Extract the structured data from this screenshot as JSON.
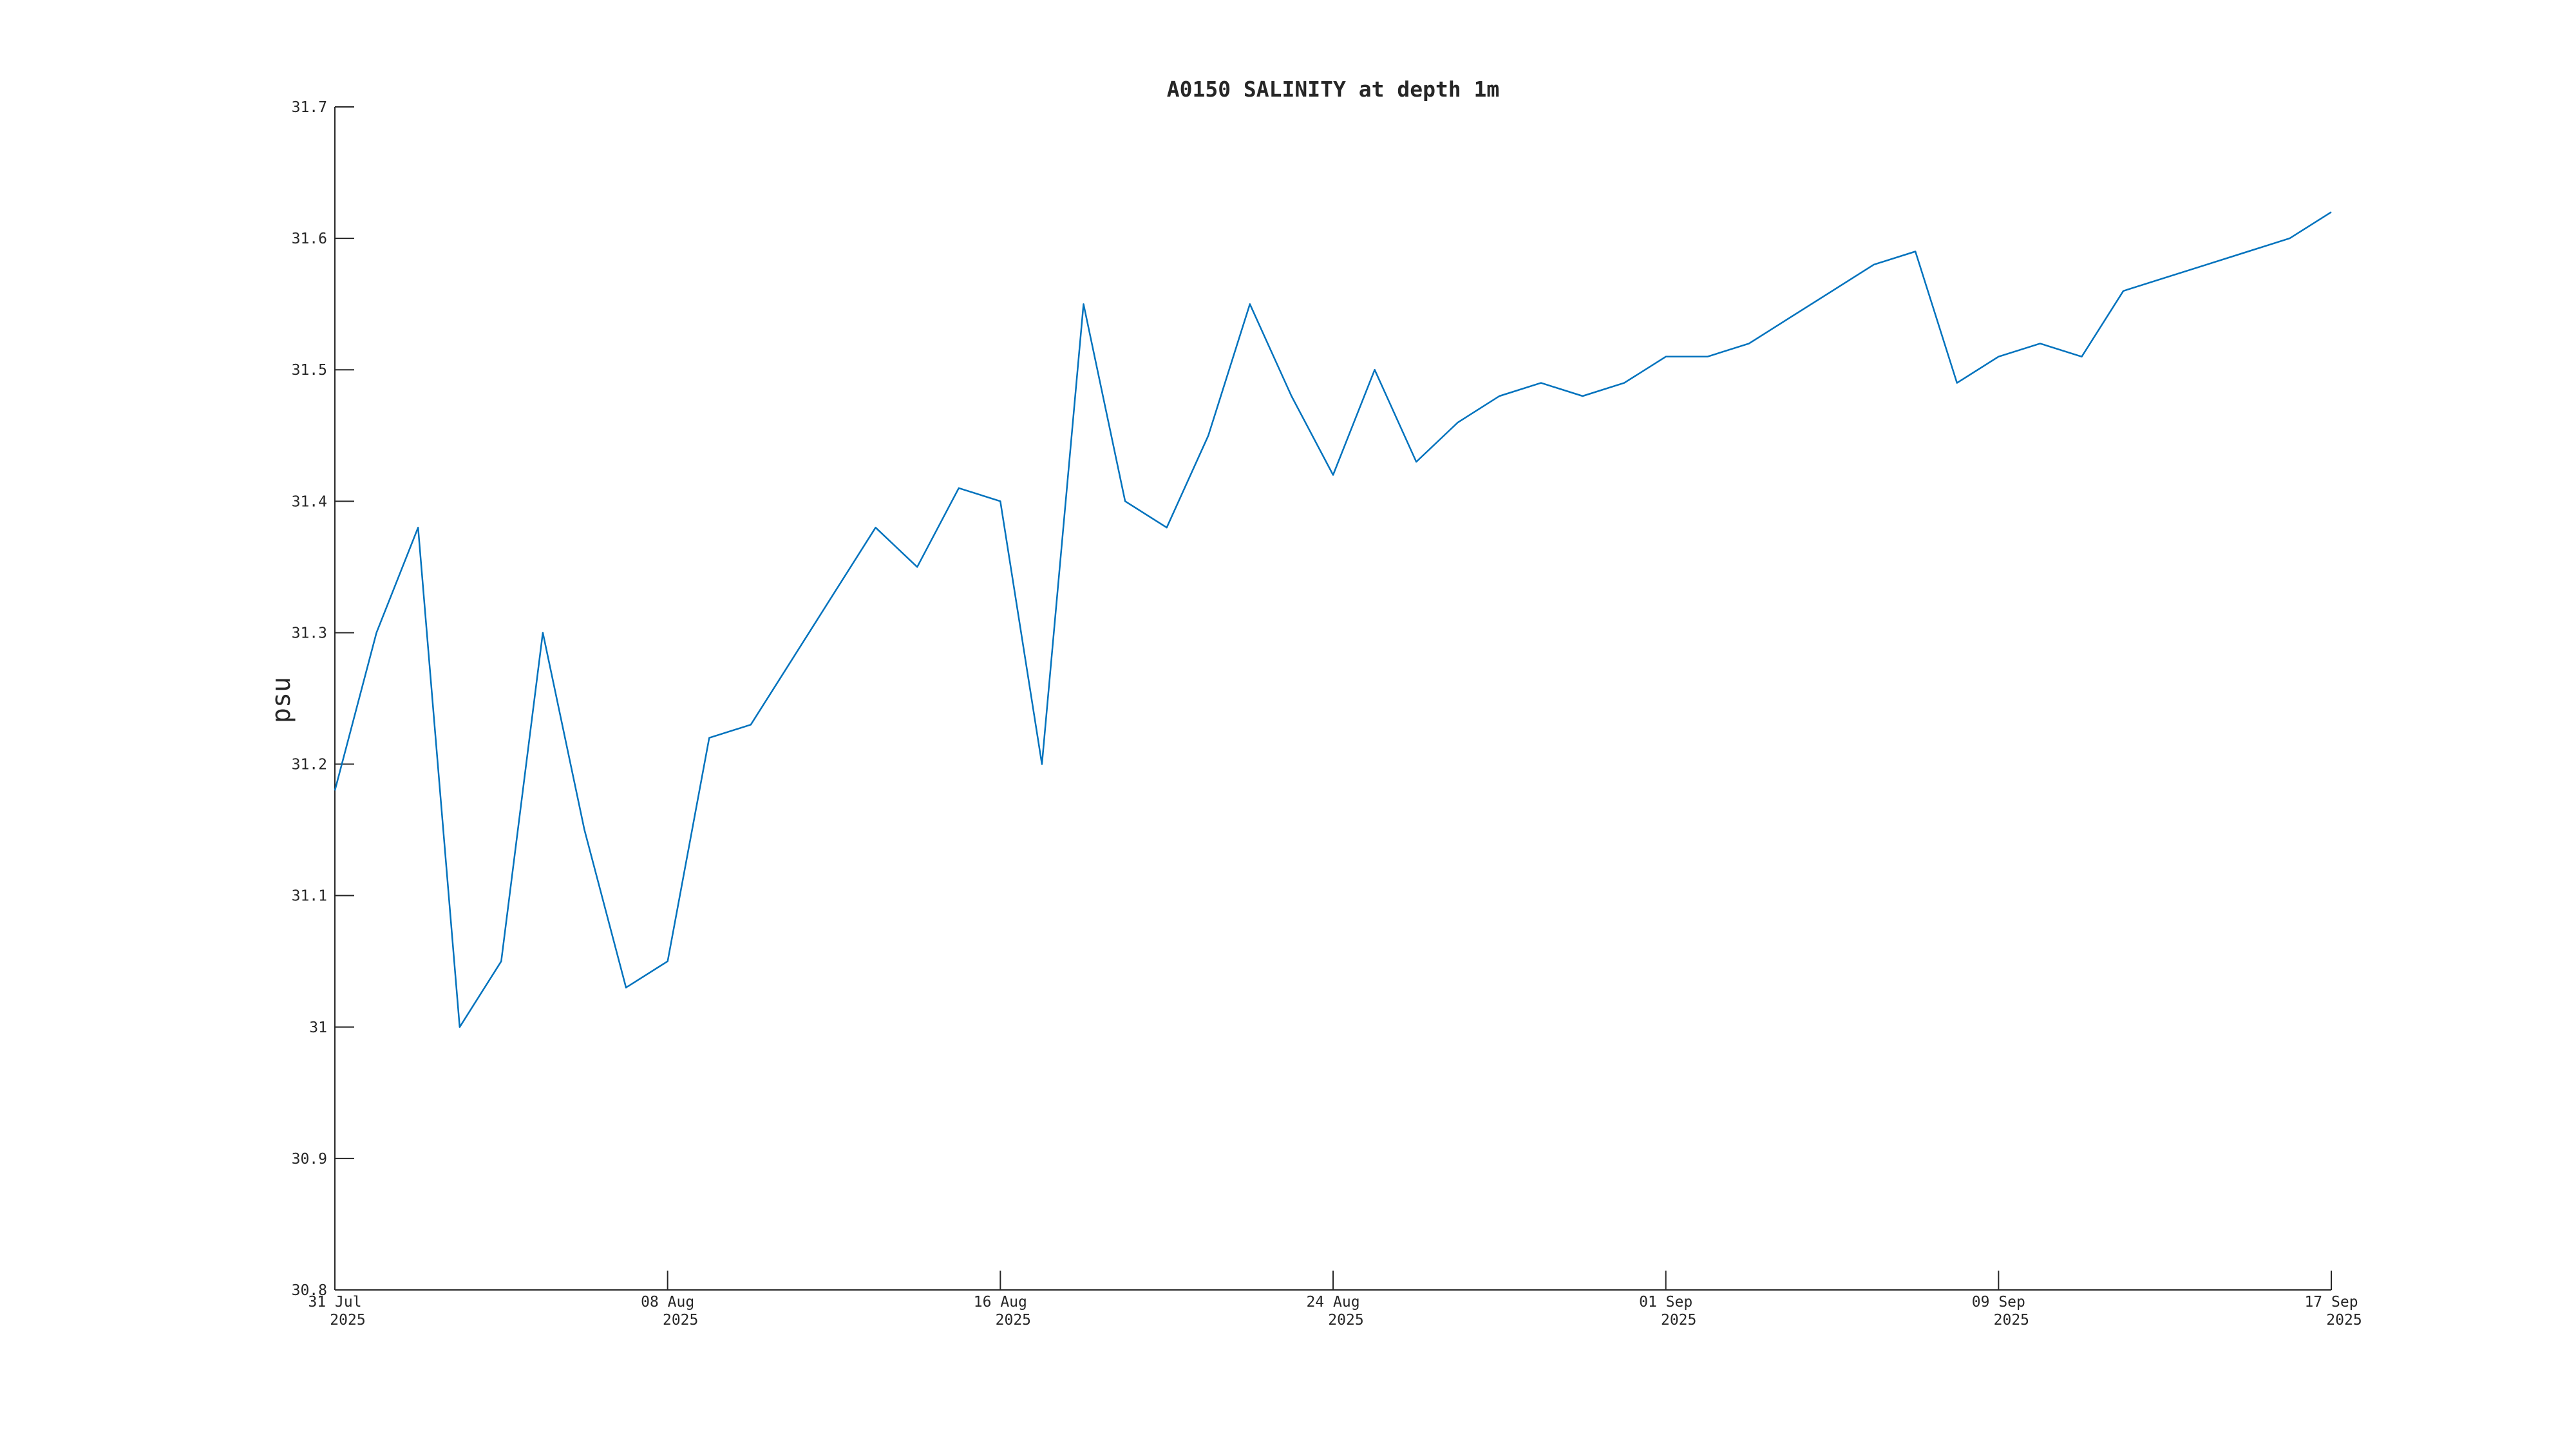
{
  "chart_data": {
    "type": "line",
    "title": "A0150 SALINITY at depth 1m",
    "y_label": "psu",
    "x": [
      "2025-07-31",
      "2025-08-01",
      "2025-08-02",
      "2025-08-03",
      "2025-08-04",
      "2025-08-05",
      "2025-08-06",
      "2025-08-07",
      "2025-08-08",
      "2025-08-09",
      "2025-08-10",
      "2025-08-11",
      "2025-08-12",
      "2025-08-13",
      "2025-08-14",
      "2025-08-15",
      "2025-08-16",
      "2025-08-17",
      "2025-08-18",
      "2025-08-19",
      "2025-08-20",
      "2025-08-21",
      "2025-08-22",
      "2025-08-23",
      "2025-08-24",
      "2025-08-25",
      "2025-08-26",
      "2025-08-27",
      "2025-08-28",
      "2025-08-29",
      "2025-08-30",
      "2025-08-31",
      "2025-09-01",
      "2025-09-02",
      "2025-09-03",
      "2025-09-04",
      "2025-09-05",
      "2025-09-06",
      "2025-09-07",
      "2025-09-08",
      "2025-09-09",
      "2025-09-10",
      "2025-09-11",
      "2025-09-12",
      "2025-09-13",
      "2025-09-14",
      "2025-09-15",
      "2025-09-16",
      "2025-09-17"
    ],
    "series": [
      {
        "name": "A0150 SALINITY",
        "color": "#0072bd",
        "values": [
          31.18,
          31.3,
          31.38,
          31.0,
          31.05,
          31.3,
          31.15,
          31.03,
          31.05,
          31.22,
          31.23,
          31.28,
          31.33,
          31.38,
          31.35,
          31.41,
          31.4,
          31.2,
          31.55,
          31.4,
          31.38,
          31.45,
          31.55,
          31.48,
          31.42,
          31.5,
          31.43,
          31.46,
          31.48,
          31.49,
          31.48,
          31.49,
          31.51,
          31.51,
          31.52,
          31.54,
          31.56,
          31.58,
          31.59,
          31.49,
          31.51,
          31.52,
          31.51,
          31.56,
          31.57,
          31.58,
          31.59,
          31.6,
          31.62
        ]
      }
    ],
    "xlim": [
      "2025-07-31",
      "2025-09-17"
    ],
    "xticks": [
      {
        "value": "2025-07-31",
        "label": "31 Jul 2025"
      },
      {
        "value": "2025-08-08",
        "label": "08 Aug 2025"
      },
      {
        "value": "2025-08-16",
        "label": "16 Aug 2025"
      },
      {
        "value": "2025-08-24",
        "label": "24 Aug 2025"
      },
      {
        "value": "2025-09-01",
        "label": "01 Sep 2025"
      },
      {
        "value": "2025-09-09",
        "label": "09 Sep 2025"
      },
      {
        "value": "2025-09-17",
        "label": "17 Sep 2025"
      }
    ],
    "ylim": [
      30.8,
      31.7
    ],
    "yticks": [
      30.8,
      30.9,
      31,
      31.1,
      31.2,
      31.3,
      31.4,
      31.5,
      31.6,
      31.7
    ],
    "grid": false
  }
}
